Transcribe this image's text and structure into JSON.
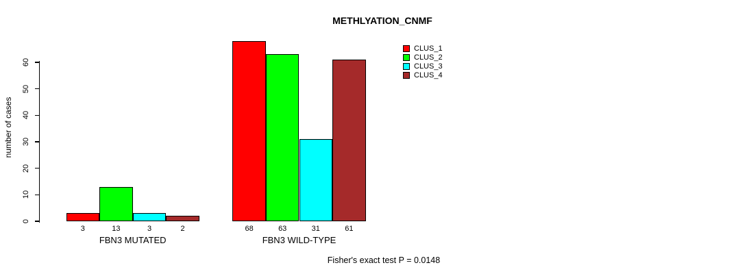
{
  "chart_data": {
    "type": "bar",
    "title": "METHLYATION_CNMF",
    "ylabel": "number of cases",
    "annotation": "Fisher's exact test P = 0.0148",
    "yticks": [
      0,
      10,
      20,
      30,
      40,
      50,
      60
    ],
    "ylim": [
      0,
      68
    ],
    "grid": false,
    "legend_position": "top-right",
    "categories": [
      "FBN3 MUTATED",
      "FBN3 WILD-TYPE"
    ],
    "series": [
      {
        "name": "CLUS_1",
        "color": "#FF0000",
        "values": [
          3,
          68
        ]
      },
      {
        "name": "CLUS_2",
        "color": "#00FF00",
        "values": [
          13,
          63
        ]
      },
      {
        "name": "CLUS_3",
        "color": "#00FFFF",
        "values": [
          3,
          31
        ]
      },
      {
        "name": "CLUS_4",
        "color": "#A52A2A",
        "values": [
          2,
          61
        ]
      }
    ]
  }
}
